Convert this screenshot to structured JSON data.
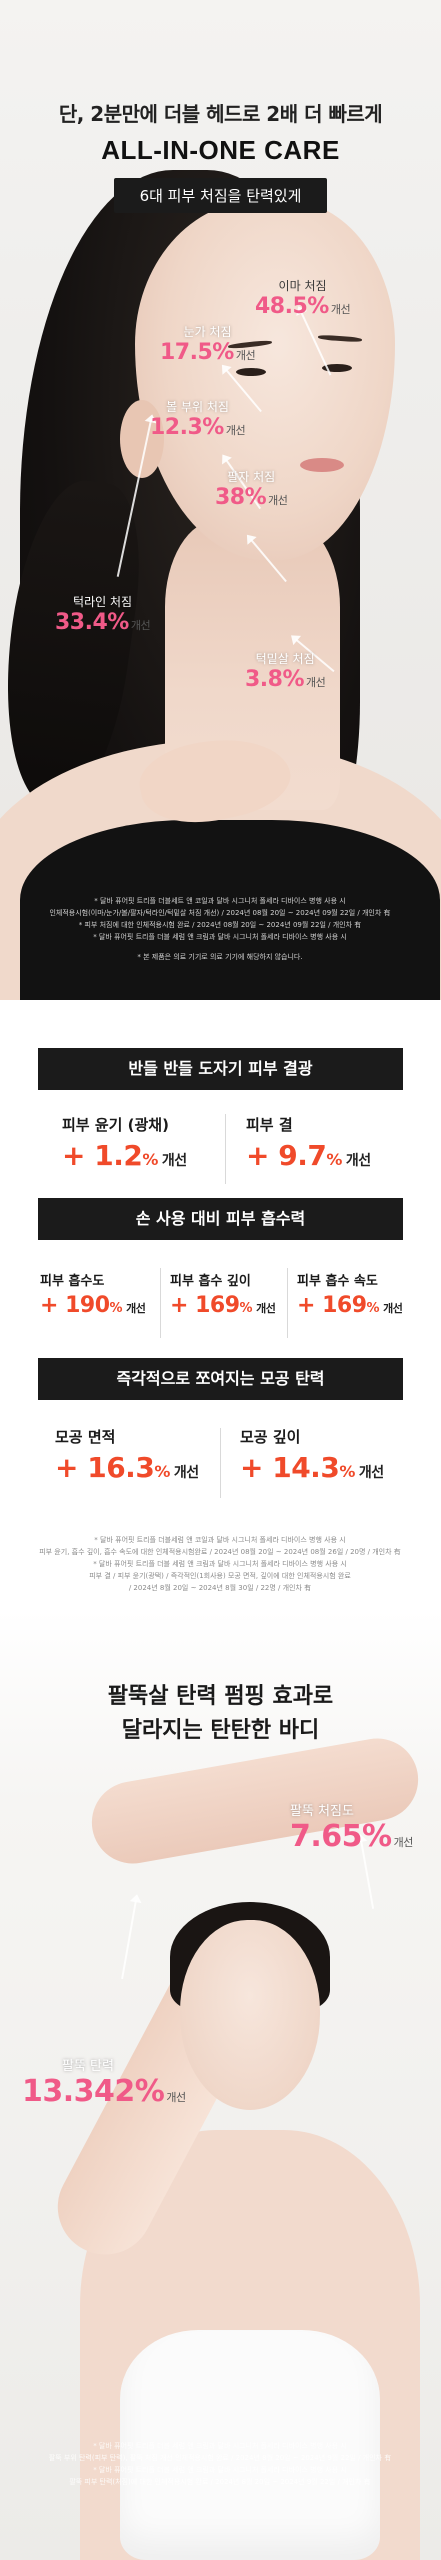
{
  "hero": {
    "subtitle": "단, 2분만에 더블 헤드로 2배 더 빠르게",
    "title": "ALL-IN-ONE CARE",
    "pill": "6대 피부 처짐을 탄력있게",
    "metrics": [
      {
        "label": "이마 처짐",
        "value": "48.5%",
        "suffix": "개선"
      },
      {
        "label": "눈가 처짐",
        "value": "17.5%",
        "suffix": "개선"
      },
      {
        "label": "볼 부위 처짐",
        "value": "12.3%",
        "suffix": "개선"
      },
      {
        "label": "팔자 처짐",
        "value": "38%",
        "suffix": "개선"
      },
      {
        "label": "턱라인 처짐",
        "value": "33.4%",
        "suffix": "개선"
      },
      {
        "label": "턱밑살 처짐",
        "value": "3.8%",
        "suffix": "개선"
      }
    ],
    "fineprint": [
      "* 달바 퓨어핏 트리플 더블세트 앤 코일과 달바 시그니처 폴세라 디바이스 병행 사용 시",
      "인체적용시험(이마/눈가/볼/팔자/턱라인/턱밑살 처짐 개선) / 2024년 08월 20일 ~ 2024년 09월 22일 / 개인차 有",
      "* 피부 처짐에 대한 인체적용시험 완료 / 2024년 08월 20일 ~ 2024년 09월 22일 / 개인차 有",
      "* 달바 퓨어핏 트리플 더블 세럼 앤 크림과 달바 시그니처 폴세라 디바이스 병행 사용 시",
      "* 본 제품은 의료 기기로 의료 기기에 해당하지 않습니다."
    ]
  },
  "results": {
    "section1": {
      "title": "반들 반들 도자기 피부 결광",
      "items": [
        {
          "label": "피부 윤기 (광채)",
          "sign": "+",
          "value": "1.2",
          "pct": "%",
          "suffix": "개선"
        },
        {
          "label": "피부 결",
          "sign": "+",
          "value": "9.7",
          "pct": "%",
          "suffix": "개선"
        }
      ]
    },
    "section2": {
      "title": "손 사용 대비 피부 흡수력",
      "items": [
        {
          "label": "피부 흡수도",
          "sign": "+",
          "value": "190",
          "pct": "%",
          "suffix": "개선"
        },
        {
          "label": "피부 흡수 깊이",
          "sign": "+",
          "value": "169",
          "pct": "%",
          "suffix": "개선"
        },
        {
          "label": "피부 흡수 속도",
          "sign": "+",
          "value": "169",
          "pct": "%",
          "suffix": "개선"
        }
      ]
    },
    "section3": {
      "title": "즉각적으로 쪼여지는 모공 탄력",
      "items": [
        {
          "label": "모공 면적",
          "sign": "+",
          "value": "16.3",
          "pct": "%",
          "suffix": "개선"
        },
        {
          "label": "모공 깊이",
          "sign": "+",
          "value": "14.3",
          "pct": "%",
          "suffix": "개선"
        }
      ]
    },
    "fineprint": [
      "* 달바 퓨어핏 트리플 더블세럼 앤 코일과 달바 시그니처 폴세라 디바이스 병행 사용 시",
      "피부 윤기, 흡수 깊이, 흡수 속도에 대한 인체적용시험완료 / 2024년 08월 20일 ~ 2024년 08월 26일 / 20명 / 개인차 有",
      "* 달바 퓨어핏 트리플 더블 세럼 앤 크림과 달바 시그니처 폴세라 디바이스 병행 사용 시",
      "피부 결 / 피부 윤기(광택) / 즉각적인(1회사용) 모공 면적, 깊이에 대한 인체적용시험 완료",
      "/ 2024년 8월 20일 ~ 2024년 8월 30일 / 22명 / 개인차 有"
    ]
  },
  "body": {
    "title_line1": "팔뚝살 탄력 펌핑 효과로",
    "title_line2": "달라지는 탄탄한 바디",
    "metrics": [
      {
        "label": "팔뚝 처짐도",
        "value": "7.65%",
        "suffix": "개선"
      },
      {
        "label": "팔뚝 탄력",
        "value": "13.342%",
        "suffix": "개선"
      }
    ],
    "fineprint": [
      "* 달바 퓨어핏 트리플 더블 세럼 앤 크림과 달바 시그니처 폴세라 디바이스 병행 사용 시",
      "팔뚝 부위 탄력(피부 탄력), 팔뚝 처짐 개선 인체적용시험 완료 / 2024년 8월 20일 ~ 2024년 9월 22일 / 개인차 有",
      "* 달바 퓨어핏 트리플 더블 세럼 앤 크림과 달바 시그니처 폴세라 디바이스 병행 사용 시",
      "팔뚝 피부 탄력(처짐)에 대한 인체적용시험 완료 / 2024년 8월 20일 ~ 2024년 9월 22일 / 개인차 有"
    ]
  }
}
